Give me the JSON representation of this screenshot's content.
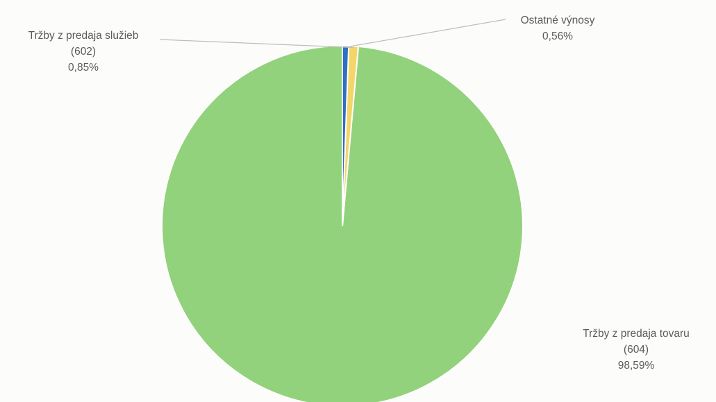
{
  "chart_data": {
    "type": "pie",
    "slices": [
      {
        "label": "Tržby z predaja tovaru",
        "code": "(604)",
        "value": 98.59,
        "value_label": "98,59%",
        "color": "#92d27c"
      },
      {
        "label": "Tržby z predaja služieb",
        "code": "(602)",
        "value": 0.85,
        "value_label": "0,85%",
        "color": "#f4d56a"
      },
      {
        "label": "Ostatné výnosy",
        "code": "",
        "value": 0.56,
        "value_label": "0,56%",
        "color": "#2f6fc4"
      }
    ],
    "start_angle_deg": 0,
    "direction": "counterclockwise",
    "legend": "none",
    "label_lines": true
  }
}
